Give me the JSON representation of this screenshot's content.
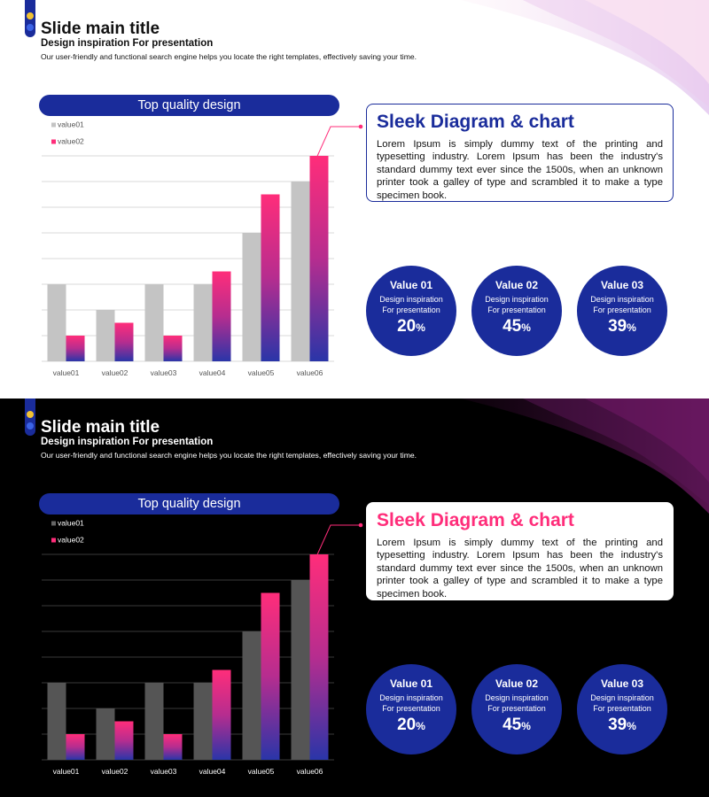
{
  "colors": {
    "navy": "#1a2c9b",
    "pink": "#ff2d7a",
    "gray_light": "#c4c4c4",
    "gray_dark": "#555555",
    "marker_yellow": "#f1c232",
    "marker_blue": "#3b63e6"
  },
  "slides": [
    {
      "theme": "light",
      "title": "Slide main title",
      "subtitle": "Design inspiration For presentation",
      "description": "Our user-friendly and functional search engine helps you locate the right templates, effectively saving your time.",
      "chart_banner": "Top quality design",
      "info": {
        "title": "Sleek Diagram & chart",
        "text": "Lorem Ipsum is simply dummy text of the printing and typesetting industry. Lorem Ipsum has been the industry's standard dummy text ever since the 1500s, when an unknown printer took a galley of type and scrambled it to make a type specimen book."
      },
      "stats": [
        {
          "label": "Value 01",
          "sub1": "Design inspiration",
          "sub2": "For presentation",
          "value": "20",
          "unit": "%"
        },
        {
          "label": "Value 02",
          "sub1": "Design inspiration",
          "sub2": "For presentation",
          "value": "45",
          "unit": "%"
        },
        {
          "label": "Value 03",
          "sub1": "Design inspiration",
          "sub2": "For presentation",
          "value": "39",
          "unit": "%"
        }
      ]
    },
    {
      "theme": "dark",
      "title": "Slide main title",
      "subtitle": "Design inspiration For presentation",
      "description": "Our user-friendly and functional search engine helps you locate the right templates, effectively saving your time.",
      "chart_banner": "Top quality design",
      "info": {
        "title": "Sleek Diagram & chart",
        "text": "Lorem Ipsum is simply dummy text of the printing and typesetting industry. Lorem Ipsum has been the industry's standard dummy text ever since the 1500s, when an unknown printer took a galley of type and scrambled it to make a type specimen book."
      },
      "stats": [
        {
          "label": "Value 01",
          "sub1": "Design inspiration",
          "sub2": "For presentation",
          "value": "20",
          "unit": "%"
        },
        {
          "label": "Value 02",
          "sub1": "Design inspiration",
          "sub2": "For presentation",
          "value": "45",
          "unit": "%"
        },
        {
          "label": "Value 03",
          "sub1": "Design inspiration",
          "sub2": "For presentation",
          "value": "39",
          "unit": "%"
        }
      ]
    }
  ],
  "chart_data": [
    {
      "type": "bar",
      "categories": [
        "value01",
        "value02",
        "value03",
        "value04",
        "value05",
        "value06"
      ],
      "series": [
        {
          "name": "value01",
          "values": [
            3,
            2,
            3,
            3,
            5,
            7
          ]
        },
        {
          "name": "value02",
          "values": [
            1,
            1.5,
            1,
            3.5,
            6.5,
            8
          ]
        }
      ],
      "ylim": [
        0,
        8
      ],
      "grid": true,
      "legend": "top-left"
    },
    {
      "type": "bar",
      "categories": [
        "value01",
        "value02",
        "value03",
        "value04",
        "value05",
        "value06"
      ],
      "series": [
        {
          "name": "value01",
          "values": [
            3,
            2,
            3,
            3,
            5,
            7
          ]
        },
        {
          "name": "value02",
          "values": [
            1,
            1.5,
            1,
            3.5,
            6.5,
            8
          ]
        }
      ],
      "ylim": [
        0,
        8
      ],
      "grid": true,
      "legend": "top-left"
    }
  ]
}
